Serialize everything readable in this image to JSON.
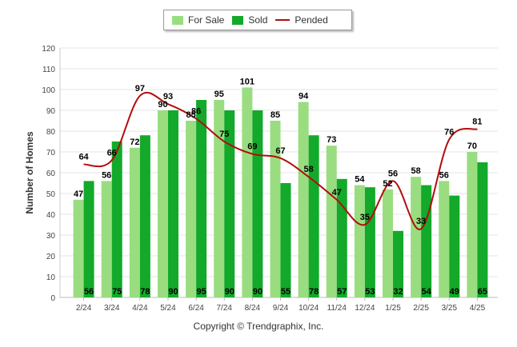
{
  "chart_data": {
    "type": "bar",
    "categories": [
      "2/24",
      "3/24",
      "4/24",
      "5/24",
      "6/24",
      "7/24",
      "8/24",
      "9/24",
      "10/24",
      "11/24",
      "12/24",
      "1/25",
      "2/25",
      "3/25",
      "4/25"
    ],
    "series": [
      {
        "name": "For Sale",
        "type": "bar",
        "color": "#99dd80",
        "values": [
          47,
          56,
          72,
          90,
          85,
          95,
          101,
          85,
          94,
          73,
          54,
          52,
          58,
          56,
          70
        ]
      },
      {
        "name": "Sold",
        "type": "bar",
        "color": "#13a92a",
        "values": [
          56,
          75,
          78,
          90,
          95,
          90,
          90,
          55,
          78,
          57,
          53,
          32,
          54,
          49,
          65
        ]
      },
      {
        "name": "Pended",
        "type": "line",
        "color": "#b20d0d",
        "values": [
          64,
          66,
          97,
          93,
          86,
          75,
          69,
          67,
          58,
          47,
          35,
          56,
          33,
          76,
          81
        ]
      }
    ],
    "ylabel": "Number of Homes",
    "ylim": [
      0,
      120
    ],
    "yticks": [
      0,
      10,
      20,
      30,
      40,
      50,
      60,
      70,
      80,
      90,
      100,
      110,
      120
    ],
    "grid": true,
    "legend_position": "top-center"
  },
  "footer": {
    "copyright": "Copyright © Trendgraphix, Inc."
  }
}
